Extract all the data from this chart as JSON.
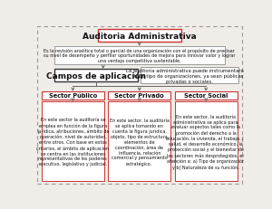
{
  "title": "Auditoria Administrativa",
  "definition_text": "Es la revisión analítica total o parcial de una organización con el propósito de precisar\nsu nivel de desempeño y perfilar oportunidades de mejora para innovar valor y lograr\nuna ventaja competitiva sustentable.",
  "campos_text": "Campos de aplicación",
  "campos_note": "La auditoría administrativa puede instrumentarse en\ntodo tipo de organizaciones, ya sean públicas,\nprivadas o sociales.",
  "sector_publico": "Sector Público",
  "sector_privado": "Sector Privado",
  "sector_social": "Sector Social",
  "pub_text": "En este sector la auditoría se\nemplea en función de la figura\njurídica, atribuciones, ámbito de\noperación, nivel de autoridad,\nentre otros. Con base en estos\ncriterios, el ámbito de aplicación\nse centra en las instituciones\nrepresentativas de los poderes\nejecutivo, legislativo y judicial.",
  "priv_text": "En este sector, la auditoría\nse aplica tomando en\ncuenta la figura jurídica,\nobjeto, tipo de estructura,\nelementos de\ncoordinación, área de\ninfluencia, relación\ncomercial y pensamiento\nestratégico.",
  "soc_text": "En este sector, la auditoría\nadministrativa se aplica para\nevaluar aspectos tales como la\npromoción del derecho a la\neducación, la vivienda, el trabajo, la\nsalud, el desarrollo económico, la\nprotección social y el bienestar de\nlos sectores más desprotegidos, en\natención a: a) Tipo de organización\ny b) Naturaleza de su función.",
  "bg_color": "#f0ede8",
  "outer_border_color": "#999999",
  "title_box_color": "#ffffff",
  "title_border_color": "#cc3333",
  "def_box_color": "#ffffff",
  "def_border_color": "#999999",
  "campos_box_color": "#ffffff",
  "campos_border_color": "#333333",
  "note_box_color": "#ffffff",
  "note_border_color": "#999999",
  "sector_box_color": "#ffffff",
  "sector_border_color": "#cc3333",
  "detail_box_color": "#ffffff",
  "detail_border_color": "#cc3333",
  "arrow_color": "#666666",
  "font_color": "#111111",
  "title_fontsize": 6.5,
  "campos_fontsize": 6.5,
  "sector_fontsize": 4.8,
  "body_fontsize": 3.5,
  "note_fontsize": 3.8
}
